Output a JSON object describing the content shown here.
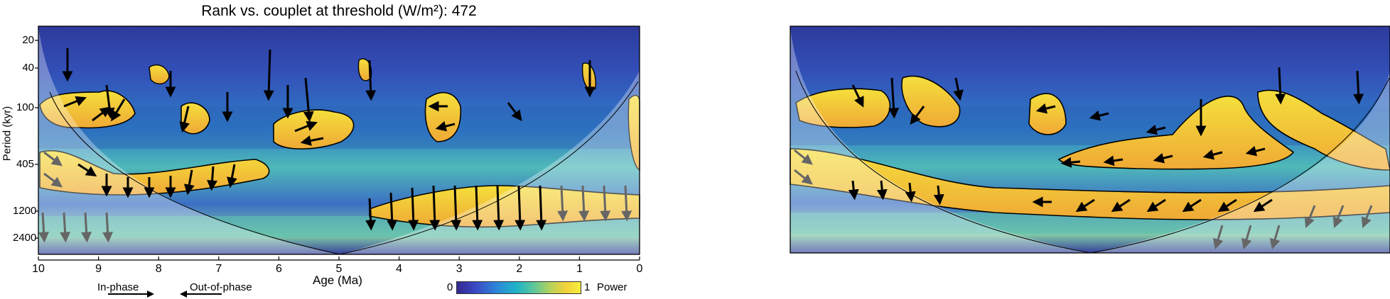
{
  "chart_data": [
    {
      "type": "heatmap",
      "title": "Rank vs. couplet at threshold (W/m²): 472",
      "xlabel": "Age (Ma)",
      "ylabel": "Period (kyr)",
      "xlim": [
        10,
        0
      ],
      "x_ticks": [
        10,
        9,
        8,
        7,
        6,
        5,
        4,
        3,
        2,
        1,
        0
      ],
      "y_ticks": [
        20,
        40,
        100,
        405,
        1200,
        2400
      ],
      "y_scale": "log",
      "colorbar": {
        "min_label": "0",
        "max_label": "1",
        "label": "Power"
      },
      "legend": {
        "in_phase": "In-phase",
        "out_of_phase": "Out-of-phase"
      }
    },
    {
      "type": "heatmap",
      "title": "",
      "xlim": [
        10,
        0
      ],
      "y_scale": "log"
    }
  ],
  "colors": {
    "low": "#2f2d8a",
    "mid": "#2ab0c4",
    "high": "#f5c83a",
    "peak": "#f3ea3b"
  }
}
